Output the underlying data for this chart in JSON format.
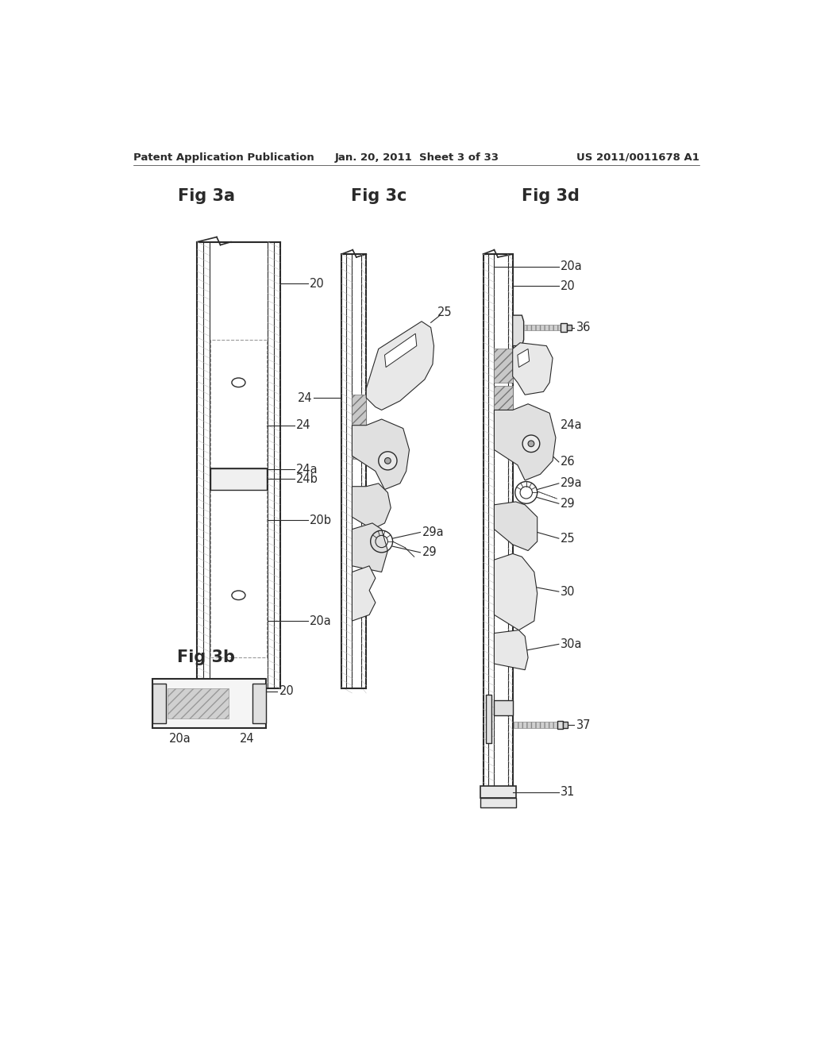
{
  "header_left": "Patent Application Publication",
  "header_mid": "Jan. 20, 2011  Sheet 3 of 33",
  "header_right": "US 2011/0011678 A1",
  "fig3a_title": "Fig 3a",
  "fig3b_title": "Fig 3b",
  "fig3c_title": "Fig 3c",
  "fig3d_title": "Fig 3d",
  "background": "#ffffff",
  "line_color": "#2a2a2a",
  "label_fontsize": 10.5,
  "title_fontsize": 15,
  "header_fontsize": 9.5
}
